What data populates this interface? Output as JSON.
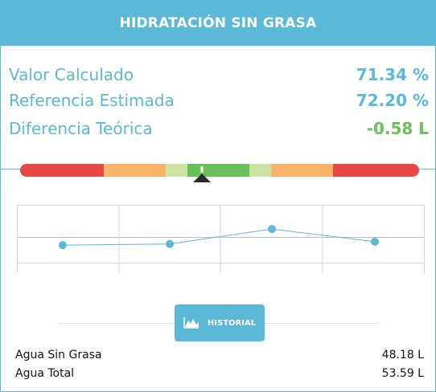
{
  "header": {
    "title": "HIDRATACIÓN SIN GRASA"
  },
  "stats": [
    {
      "label": "Valor Calculado",
      "value": "71.34 %",
      "color": "#5bb8d6"
    },
    {
      "label": "Referencia Estimada",
      "value": "72.20 %",
      "color": "#5bb8d6"
    },
    {
      "label": "Diferencia Teórica",
      "value": "-0.58 L",
      "color": "#6bbf59"
    }
  ],
  "gauge": {
    "segments": [
      {
        "color": "#e84747",
        "span": 0.21
      },
      {
        "color": "#fbb36b",
        "span": 0.155
      },
      {
        "color": "#cfe2a8",
        "span": 0.055
      },
      {
        "color": "#6bbf59",
        "span": 0.155
      },
      {
        "color": "#cfe2a8",
        "span": 0.055
      },
      {
        "color": "#fbb36b",
        "span": 0.155
      },
      {
        "color": "#e84747",
        "span": 0.215
      }
    ],
    "marker_fraction": 0.455
  },
  "history_chart": {
    "values": [
      71.0,
      71.1,
      72.4,
      71.3
    ],
    "ylim": [
      68.5,
      74.5
    ],
    "line_color": "#5bb8d6"
  },
  "history_button": {
    "label": "HISTORIAL",
    "icon": "mountain-chart-icon"
  },
  "footer": [
    {
      "label": "Agua Sin Grasa",
      "value": "48.18 L"
    },
    {
      "label": "Agua Total",
      "value": "53.59 L"
    }
  ]
}
